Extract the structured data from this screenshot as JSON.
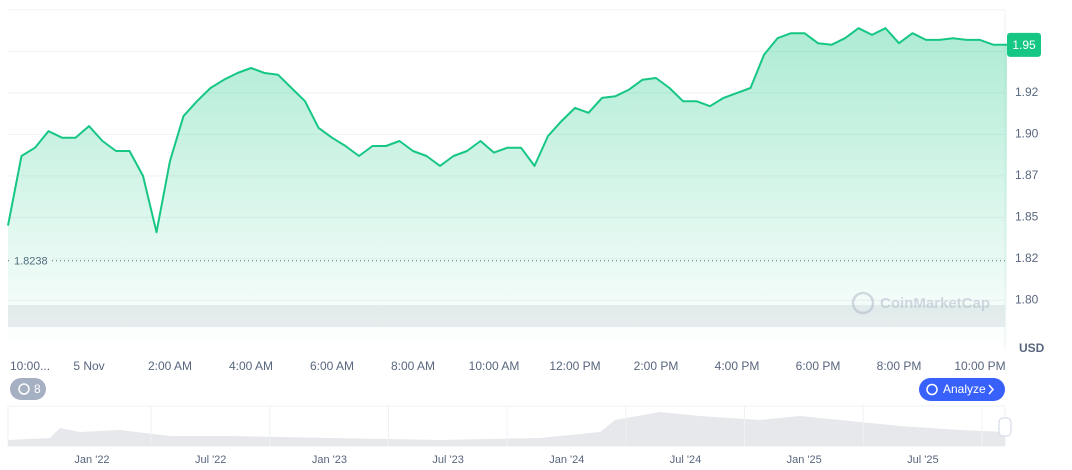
{
  "chart_data": {
    "type": "line",
    "currency": "USD",
    "watermark": "CoinMarketCap",
    "badge": "8",
    "button": "Analyze",
    "color": "#16c784",
    "grid": true,
    "reference_line": 1.8238,
    "current_price": {
      "value": 1.954,
      "label": "1.95"
    },
    "categories": [
      "10:00...",
      null,
      null,
      null,
      null,
      null,
      "5 Nov",
      null,
      null,
      null,
      null,
      null,
      "2:00 AM",
      null,
      null,
      null,
      null,
      null,
      "4:00 AM",
      null,
      null,
      null,
      null,
      null,
      "6:00 AM",
      null,
      null,
      null,
      null,
      null,
      "8:00 AM",
      null,
      null,
      null,
      null,
      null,
      "10:00 AM",
      null,
      null,
      null,
      null,
      null,
      "12:00 PM",
      null,
      null,
      null,
      null,
      null,
      "2:00 PM",
      null,
      null,
      null,
      null,
      null,
      "4:00 PM",
      null,
      null,
      null,
      null,
      null,
      "6:00 PM",
      null,
      null,
      null,
      null,
      null,
      "8:00 PM",
      null,
      null,
      null,
      null,
      null,
      "10:00 PM",
      null,
      null
    ],
    "values": [
      1.845,
      1.887,
      1.892,
      1.902,
      1.898,
      1.898,
      1.905,
      1.896,
      1.89,
      1.89,
      1.875,
      1.841,
      1.884,
      1.911,
      1.92,
      1.928,
      1.933,
      1.937,
      1.94,
      1.937,
      1.936,
      1.928,
      1.92,
      1.904,
      1.898,
      1.893,
      1.887,
      1.893,
      1.893,
      1.896,
      1.89,
      1.887,
      1.881,
      1.887,
      1.89,
      1.896,
      1.889,
      1.892,
      1.892,
      1.881,
      1.899,
      1.908,
      1.916,
      1.913,
      1.922,
      1.923,
      1.927,
      1.933,
      1.934,
      1.928,
      1.92,
      1.92,
      1.917,
      1.922,
      1.925,
      1.928,
      1.948,
      1.958,
      1.961,
      1.961,
      1.955,
      1.954,
      1.958,
      1.964,
      1.96,
      1.964,
      1.955,
      1.961,
      1.957,
      1.957,
      1.958,
      1.957,
      1.957,
      1.954,
      1.954
    ],
    "ylim": [
      1.77,
      1.975
    ],
    "yticks": [
      {
        "value": 1.8,
        "label": "1.80"
      },
      {
        "value": 1.825,
        "label": "1.82"
      },
      1.85,
      {
        "value": 1.875,
        "label": "1.87"
      },
      {
        "value": 1.9,
        "label": "1.90"
      },
      {
        "value": 1.925,
        "label": "1.92"
      },
      1.95
    ],
    "navigator_labels": [
      "Jan '22",
      "Jul '22",
      "Jan '23",
      "Jul '23",
      "Jan '24",
      "Jul '24",
      "Jan '25",
      "Jul '25"
    ]
  }
}
